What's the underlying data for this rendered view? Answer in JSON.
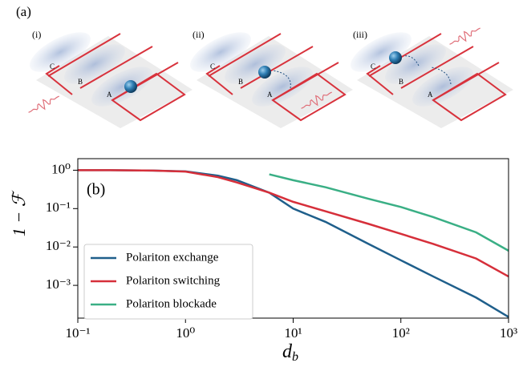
{
  "panel_a": {
    "label": "(a)",
    "subpanels": [
      {
        "label": "(i)",
        "nodes": [
          "C",
          "B",
          "A"
        ]
      },
      {
        "label": "(ii)",
        "nodes": [
          "C",
          "B",
          "A"
        ]
      },
      {
        "label": "(iii)",
        "nodes": [
          "C",
          "B",
          "A"
        ]
      }
    ]
  },
  "chart_data": {
    "type": "line",
    "panel_label": "(b)",
    "ylabel": "1 − ℱ",
    "xlabel": "d",
    "xlabel_sub": "b",
    "x": [
      0.1,
      0.2,
      0.5,
      1,
      2,
      3,
      6,
      10,
      20,
      50,
      100,
      200,
      500,
      1000
    ],
    "series": [
      {
        "name": "Polariton exchange",
        "color": "#1f5f8b",
        "values": [
          1.0,
          1.0,
          0.98,
          0.93,
          0.72,
          0.55,
          0.26,
          0.1,
          0.045,
          0.012,
          0.0045,
          0.0017,
          0.00048,
          0.00015
        ]
      },
      {
        "name": "Polariton switching",
        "color": "#d62f3a",
        "values": [
          1.0,
          1.0,
          0.98,
          0.92,
          0.66,
          0.48,
          0.26,
          0.15,
          0.085,
          0.04,
          0.022,
          0.012,
          0.005,
          0.0017
        ]
      },
      {
        "name": "Polariton blockade",
        "color": "#3aaf85",
        "values": [
          null,
          null,
          null,
          null,
          null,
          null,
          0.78,
          0.55,
          0.36,
          0.18,
          0.11,
          0.06,
          0.024,
          0.008
        ]
      }
    ],
    "xscale": "log",
    "yscale": "log",
    "xlim": [
      0.1,
      1000
    ],
    "ylim": [
      0.00014,
      2.0
    ],
    "xticks": [
      {
        "value": 0.1,
        "label": "10⁻¹"
      },
      {
        "value": 1,
        "label": "10⁰"
      },
      {
        "value": 10,
        "label": "10¹"
      },
      {
        "value": 100,
        "label": "10²"
      },
      {
        "value": 1000,
        "label": "10³"
      }
    ],
    "yticks": [
      {
        "value": 1,
        "label": "10⁰"
      },
      {
        "value": 0.1,
        "label": "10⁻¹"
      },
      {
        "value": 0.01,
        "label": "10⁻²"
      },
      {
        "value": 0.001,
        "label": "10⁻³"
      }
    ],
    "legend": "lower left"
  }
}
